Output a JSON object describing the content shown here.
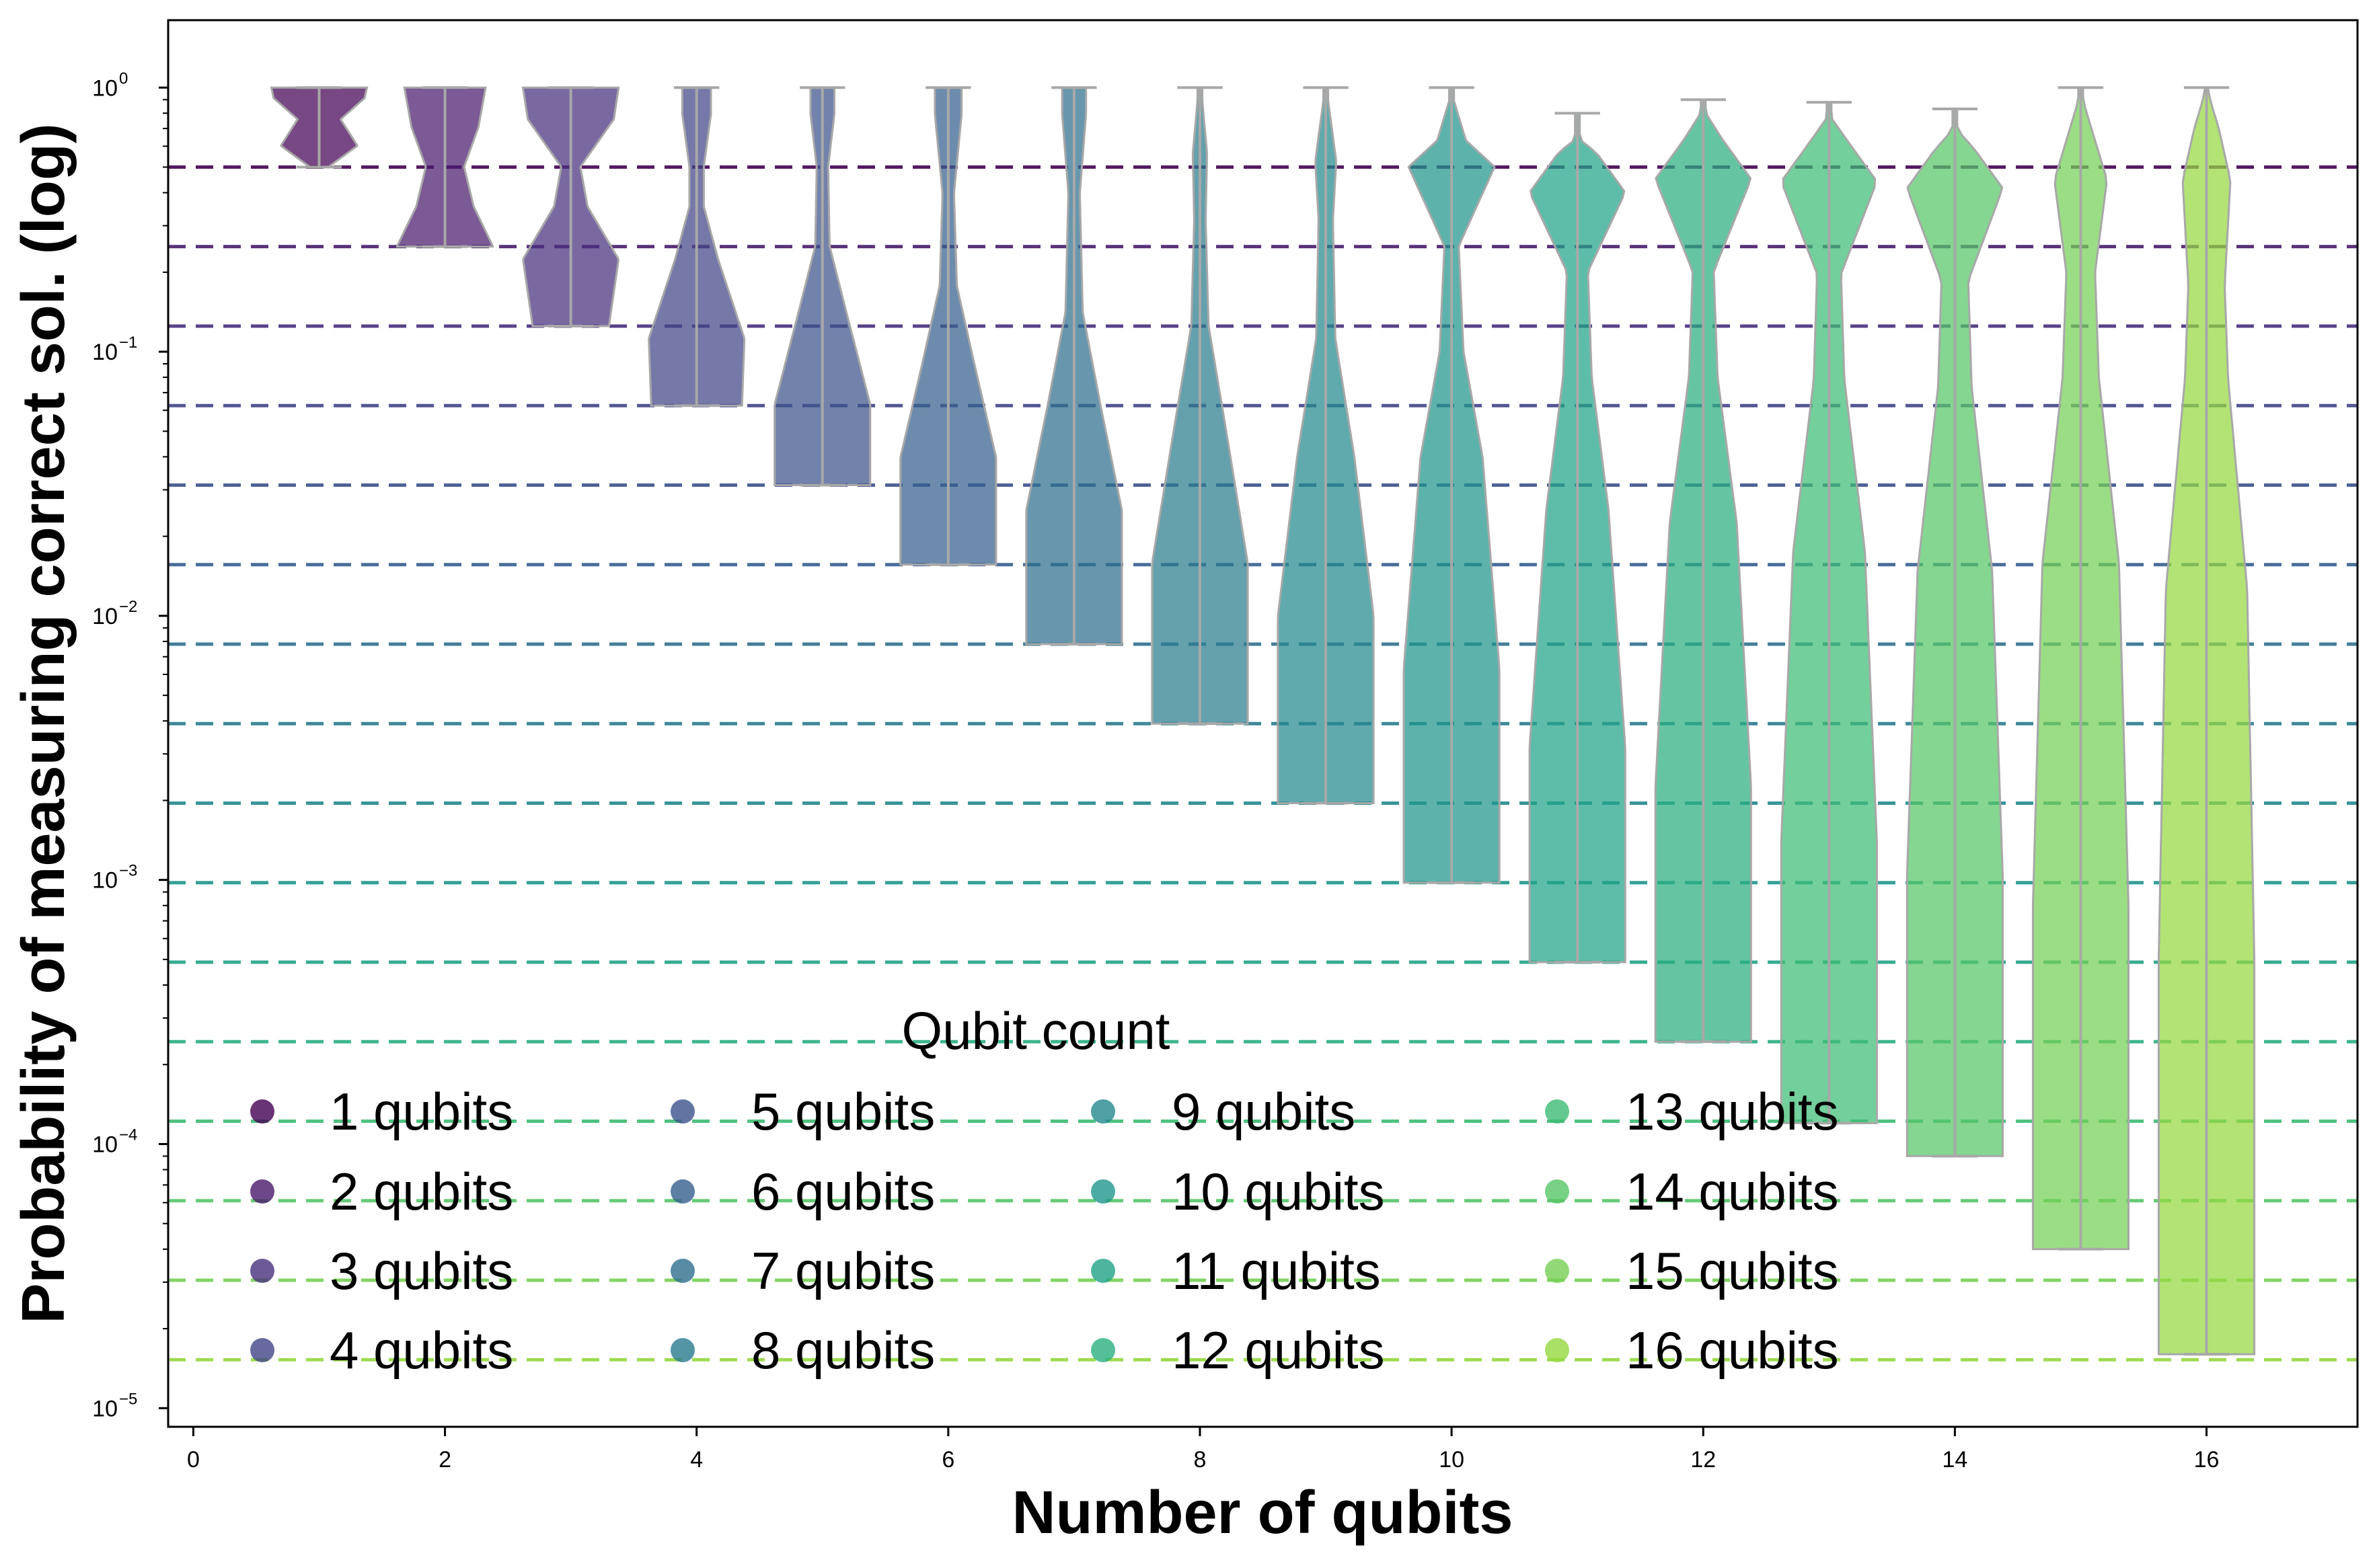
{
  "chart_data": {
    "type": "violin",
    "xlabel": "Number of qubits",
    "ylabel": "Probability of measuring correct sol. (log)",
    "y_scale": "log",
    "xlim": [
      -0.2,
      17.2
    ],
    "ylim": [
      8.5e-06,
      1.8
    ],
    "x_ticks": [
      0,
      2,
      4,
      6,
      8,
      10,
      12,
      14,
      16
    ],
    "x_tick_labels": [
      "0",
      "2",
      "4",
      "6",
      "8",
      "10",
      "12",
      "14",
      "16"
    ],
    "y_ticks": [
      {
        "value": 1,
        "base": "10",
        "exp": "0"
      },
      {
        "value": 0.1,
        "base": "10",
        "exp": "−1"
      },
      {
        "value": 0.01,
        "base": "10",
        "exp": "−2"
      },
      {
        "value": 0.001,
        "base": "10",
        "exp": "−3"
      },
      {
        "value": 0.0001,
        "base": "10",
        "exp": "−4"
      },
      {
        "value": 1e-05,
        "base": "10",
        "exp": "−5"
      }
    ],
    "reference_lines": {
      "style": "dashed",
      "description_values": [
        0.5,
        0.25,
        0.125,
        0.0625,
        0.03125,
        0.015625,
        0.0078125,
        0.00390625,
        0.001953125,
        0.0009765625,
        0.00048828125,
        0.000244140625,
        0.0001220703125,
        6.103515625e-05,
        3.0517578125e-05,
        1.52587890625e-05
      ]
    },
    "legend": {
      "title": "Qubit count",
      "placement": "lower-center",
      "columns": 4,
      "entries": [
        "1 qubits",
        "2 qubits",
        "3 qubits",
        "4 qubits",
        "5 qubits",
        "6 qubits",
        "7 qubits",
        "8 qubits",
        "9 qubits",
        "10 qubits",
        "11 qubits",
        "12 qubits",
        "13 qubits",
        "14 qubits",
        "15 qubits",
        "16 qubits"
      ]
    },
    "series": [
      {
        "qubits": 1,
        "color": "#440154",
        "min": 0.5,
        "max": 1.0,
        "median_width_profile": [
          [
            -0.3,
            0.2
          ],
          [
            -0.22,
            0.8
          ],
          [
            -0.12,
            0.45
          ],
          [
            -0.04,
            0.95
          ],
          [
            0,
            1.0
          ]
        ]
      },
      {
        "qubits": 2,
        "color": "#481a6c",
        "min": 0.25,
        "max": 1.0,
        "median_width_profile": [
          [
            -0.6,
            1.0
          ],
          [
            -0.45,
            0.6
          ],
          [
            -0.3,
            0.4
          ],
          [
            -0.15,
            0.7
          ],
          [
            0,
            0.85
          ]
        ]
      },
      {
        "qubits": 3,
        "color": "#472f7d",
        "min": 0.125,
        "max": 1.0,
        "median_width_profile": [
          [
            -0.9,
            0.8
          ],
          [
            -0.65,
            1.0
          ],
          [
            -0.45,
            0.35
          ],
          [
            -0.3,
            0.2
          ],
          [
            -0.12,
            0.9
          ],
          [
            0,
            1.0
          ]
        ]
      },
      {
        "qubits": 4,
        "color": "#414487",
        "min": 0.0625,
        "max": 1.0,
        "median_width_profile": [
          [
            -1.2,
            0.95
          ],
          [
            -0.95,
            1.0
          ],
          [
            -0.65,
            0.45
          ],
          [
            -0.45,
            0.15
          ],
          [
            -0.3,
            0.15
          ],
          [
            -0.1,
            0.3
          ],
          [
            0,
            0.3
          ]
        ]
      },
      {
        "qubits": 5,
        "color": "#3b528b",
        "min": 0.03125,
        "max": 1.0,
        "median_width_profile": [
          [
            -1.5,
            1.0
          ],
          [
            -1.2,
            1.0
          ],
          [
            -0.85,
            0.5
          ],
          [
            -0.6,
            0.15
          ],
          [
            -0.3,
            0.12
          ],
          [
            -0.1,
            0.25
          ],
          [
            0,
            0.25
          ]
        ]
      },
      {
        "qubits": 6,
        "color": "#355f8d",
        "min": 0.015625,
        "max": 1.0,
        "median_width_profile": [
          [
            -1.8,
            1.0
          ],
          [
            -1.4,
            1.0
          ],
          [
            -1.05,
            0.55
          ],
          [
            -0.75,
            0.18
          ],
          [
            -0.4,
            0.12
          ],
          [
            -0.1,
            0.28
          ],
          [
            0,
            0.28
          ]
        ]
      },
      {
        "qubits": 7,
        "color": "#2e6f8e",
        "min": 0.0078125,
        "max": 1.0,
        "median_width_profile": [
          [
            -2.1,
            1.0
          ],
          [
            -1.6,
            1.0
          ],
          [
            -1.2,
            0.55
          ],
          [
            -0.85,
            0.18
          ],
          [
            -0.4,
            0.12
          ],
          [
            -0.1,
            0.25
          ],
          [
            0,
            0.25
          ]
        ]
      },
      {
        "qubits": 8,
        "color": "#297b8e",
        "min": 0.00390625,
        "max": 1.0,
        "median_width_profile": [
          [
            -2.4,
            1.0
          ],
          [
            -1.8,
            1.0
          ],
          [
            -1.3,
            0.55
          ],
          [
            -0.9,
            0.18
          ],
          [
            -0.5,
            0.12
          ],
          [
            -0.25,
            0.15
          ],
          [
            -0.05,
            0.05
          ],
          [
            0,
            0.05
          ]
        ]
      },
      {
        "qubits": 9,
        "color": "#23898e",
        "min": 0.001953125,
        "max": 1.0,
        "median_width_profile": [
          [
            -2.7,
            1.0
          ],
          [
            -2.0,
            1.0
          ],
          [
            -1.4,
            0.6
          ],
          [
            -0.95,
            0.2
          ],
          [
            -0.5,
            0.15
          ],
          [
            -0.28,
            0.22
          ],
          [
            -0.05,
            0.05
          ],
          [
            0,
            0.05
          ]
        ]
      },
      {
        "qubits": 10,
        "color": "#1f968b",
        "min": 0.0009765625,
        "max": 1.0,
        "median_width_profile": [
          [
            -3.0,
            1.0
          ],
          [
            -2.2,
            1.0
          ],
          [
            -1.4,
            0.65
          ],
          [
            -1.0,
            0.25
          ],
          [
            -0.6,
            0.15
          ],
          [
            -0.3,
            0.9
          ],
          [
            -0.2,
            0.3
          ],
          [
            -0.05,
            0.05
          ],
          [
            0,
            0.05
          ]
        ]
      },
      {
        "qubits": 11,
        "color": "#20a386",
        "min": 0.00048828125,
        "max": 0.8,
        "median_width_profile": [
          [
            -3.3,
            1.0
          ],
          [
            -2.4,
            1.0
          ],
          [
            -1.5,
            0.65
          ],
          [
            -1.0,
            0.3
          ],
          [
            -0.6,
            0.22
          ],
          [
            -0.3,
            1.0
          ],
          [
            -0.15,
            0.4
          ],
          [
            -0.1,
            0.05
          ]
        ]
      },
      {
        "qubits": 12,
        "color": "#29af7f",
        "min": 0.000244140625,
        "max": 0.9,
        "median_width_profile": [
          [
            -3.6,
            1.0
          ],
          [
            -2.6,
            1.0
          ],
          [
            -1.6,
            0.7
          ],
          [
            -1.05,
            0.3
          ],
          [
            -0.65,
            0.22
          ],
          [
            -0.3,
            1.0
          ],
          [
            -0.15,
            0.4
          ],
          [
            -0.05,
            0.05
          ]
        ]
      },
      {
        "qubits": 13,
        "color": "#3dbc74",
        "min": 0.00012,
        "max": 0.88,
        "median_width_profile": [
          [
            -3.9,
            1.0
          ],
          [
            -2.8,
            1.0
          ],
          [
            -1.7,
            0.75
          ],
          [
            -1.05,
            0.32
          ],
          [
            -0.65,
            0.25
          ],
          [
            -0.3,
            1.0
          ],
          [
            -0.15,
            0.4
          ],
          [
            -0.06,
            0.05
          ]
        ]
      },
      {
        "qubits": 14,
        "color": "#56c667",
        "min": 9e-05,
        "max": 0.83,
        "median_width_profile": [
          [
            -4.05,
            1.0
          ],
          [
            -2.9,
            1.0
          ],
          [
            -1.75,
            0.78
          ],
          [
            -1.05,
            0.35
          ],
          [
            -0.65,
            0.28
          ],
          [
            -0.3,
            1.0
          ],
          [
            -0.15,
            0.4
          ],
          [
            -0.08,
            0.05
          ]
        ]
      },
      {
        "qubits": 15,
        "color": "#75d054",
        "min": 4e-05,
        "max": 1.0,
        "median_width_profile": [
          [
            -4.4,
            1.0
          ],
          [
            -3.1,
            1.0
          ],
          [
            -1.8,
            0.8
          ],
          [
            -1.1,
            0.38
          ],
          [
            -0.7,
            0.3
          ],
          [
            -0.35,
            0.55
          ],
          [
            -0.2,
            0.3
          ],
          [
            -0.05,
            0.05
          ],
          [
            0,
            0.05
          ]
        ]
      },
      {
        "qubits": 16,
        "color": "#95d840",
        "min": 1.6e-05,
        "max": 1.0,
        "median_width_profile": [
          [
            -4.8,
            1.0
          ],
          [
            -3.3,
            1.0
          ],
          [
            -1.9,
            0.85
          ],
          [
            -1.1,
            0.45
          ],
          [
            -0.75,
            0.38
          ],
          [
            -0.35,
            0.5
          ],
          [
            -0.15,
            0.25
          ],
          [
            -0.05,
            0.08
          ],
          [
            0,
            0.03
          ]
        ]
      }
    ]
  }
}
